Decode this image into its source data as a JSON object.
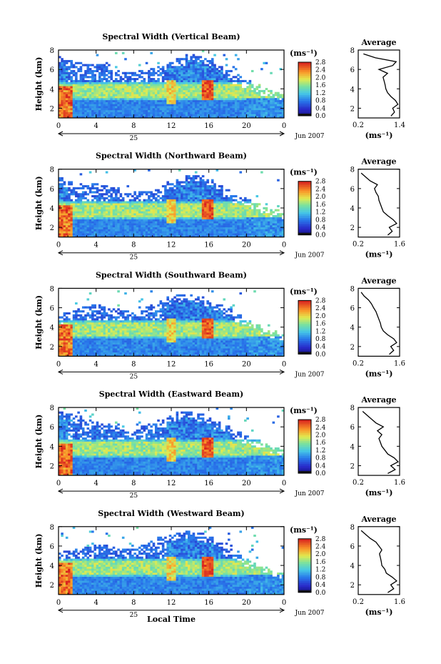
{
  "figure": {
    "xlabel_bottom": "Local Time",
    "date_label": "Jun 2007",
    "date_day": "25",
    "unit_label": "(ms⁻¹)",
    "avg_title": "Average",
    "avg_xlabel": "(ms⁻¹)"
  },
  "chart_data": [
    {
      "type": "heatmap",
      "title": "Spectral Width (Vertical Beam)",
      "ylabel": "Height (km)",
      "xlabel": "",
      "x_ticks": [
        "0",
        "4",
        "8",
        "12",
        "16",
        "20",
        "0"
      ],
      "xlim": [
        0,
        24
      ],
      "ylim": [
        1,
        8
      ],
      "y_ticks": [
        "2",
        "4",
        "6",
        "8"
      ],
      "colorbar": {
        "min": 0.0,
        "max": 2.8,
        "ticks": [
          "2.8",
          "2.4",
          "2.0",
          "1.6",
          "1.2",
          "0.8",
          "0.4",
          "0.0"
        ]
      },
      "cloud_top_km": [
        7.2,
        6.9,
        6.5,
        6.3,
        6.4,
        6.6,
        5.9,
        5.5,
        5.4,
        5.6,
        5.8,
        6.2,
        6.6,
        6.9,
        7.4,
        7.2,
        6.9,
        6.4,
        5.6,
        5.0,
        4.6,
        4.2,
        3.8,
        3.6,
        3.4
      ],
      "average_profile": {
        "xlim": [
          0.2,
          1.4
        ],
        "x_ticks": [
          "0.2",
          "1.4"
        ],
        "heights": [
          1.2,
          1.6,
          2.0,
          2.4,
          2.8,
          3.2,
          3.6,
          4.0,
          4.4,
          4.8,
          5.2,
          5.6,
          6.0,
          6.4,
          6.8,
          7.2,
          7.6
        ],
        "values": [
          1.15,
          1.25,
          1.2,
          1.35,
          1.28,
          1.15,
          1.05,
          1.0,
          0.98,
          0.95,
          0.92,
          1.05,
          0.8,
          1.2,
          1.3,
          0.7,
          0.35
        ]
      }
    },
    {
      "type": "heatmap",
      "title": "Spectral Width (Northward Beam)",
      "ylabel": "Height (km)",
      "xlabel": "",
      "x_ticks": [
        "0",
        "4",
        "8",
        "12",
        "16",
        "20",
        "0"
      ],
      "xlim": [
        0,
        24
      ],
      "ylim": [
        1,
        8
      ],
      "y_ticks": [
        "2",
        "4",
        "6",
        "8"
      ],
      "colorbar": {
        "min": 0.0,
        "max": 2.8,
        "ticks": [
          "2.8",
          "2.4",
          "2.0",
          "1.6",
          "1.2",
          "0.8",
          "0.4",
          "0.0"
        ]
      },
      "cloud_top_km": [
        7.0,
        6.6,
        6.3,
        6.2,
        6.3,
        6.1,
        5.8,
        5.3,
        5.2,
        5.4,
        5.7,
        6.0,
        6.5,
        6.8,
        7.2,
        7.1,
        6.8,
        6.2,
        5.6,
        5.1,
        4.7,
        4.3,
        3.9,
        3.6,
        3.3
      ],
      "average_profile": {
        "xlim": [
          0.2,
          1.6
        ],
        "x_ticks": [
          "0.2",
          "1.6"
        ],
        "heights": [
          1.2,
          1.6,
          2.0,
          2.4,
          2.8,
          3.2,
          3.6,
          4.0,
          4.4,
          4.8,
          5.2,
          5.6,
          6.0,
          6.4,
          6.8,
          7.2,
          7.6
        ],
        "values": [
          1.2,
          1.35,
          1.25,
          1.5,
          1.38,
          1.2,
          1.05,
          1.0,
          0.95,
          0.9,
          0.88,
          0.8,
          0.75,
          0.85,
          0.6,
          0.45,
          0.3
        ]
      }
    },
    {
      "type": "heatmap",
      "title": "Spectral Width (Southward Beam)",
      "ylabel": "Height (km)",
      "xlabel": "",
      "x_ticks": [
        "0",
        "4",
        "8",
        "12",
        "16",
        "20",
        "0"
      ],
      "xlim": [
        0,
        24
      ],
      "ylim": [
        1,
        8
      ],
      "y_ticks": [
        "2",
        "4",
        "6",
        "8"
      ],
      "colorbar": {
        "min": 0.0,
        "max": 2.8,
        "ticks": [
          "2.8",
          "2.4",
          "2.0",
          "1.6",
          "1.2",
          "0.8",
          "0.4",
          "0.0"
        ]
      },
      "cloud_top_km": [
        4.8,
        5.2,
        5.6,
        5.9,
        6.2,
        6.0,
        5.6,
        5.4,
        5.5,
        5.8,
        6.2,
        6.6,
        6.9,
        7.1,
        7.2,
        7.0,
        6.7,
        6.2,
        5.6,
        5.0,
        4.5,
        4.1,
        3.7,
        3.4,
        3.2
      ],
      "average_profile": {
        "xlim": [
          0.2,
          1.6
        ],
        "x_ticks": [
          "0.2",
          "1.6"
        ],
        "heights": [
          1.2,
          1.6,
          2.0,
          2.4,
          2.8,
          3.2,
          3.6,
          4.0,
          4.4,
          4.8,
          5.2,
          5.6,
          6.0,
          6.4,
          6.8,
          7.2,
          7.6
        ],
        "values": [
          1.25,
          1.4,
          1.3,
          1.5,
          1.4,
          1.2,
          1.05,
          0.98,
          0.95,
          0.9,
          0.85,
          0.8,
          0.72,
          0.65,
          0.55,
          0.4,
          0.3
        ]
      }
    },
    {
      "type": "heatmap",
      "title": "Spectral Width (Eastward Beam)",
      "ylabel": "Height (km)",
      "xlabel": "",
      "x_ticks": [
        "0",
        "4",
        "8",
        "12",
        "16",
        "20",
        "0"
      ],
      "xlim": [
        0,
        24
      ],
      "ylim": [
        1,
        8
      ],
      "y_ticks": [
        "2",
        "4",
        "6",
        "8"
      ],
      "colorbar": {
        "min": 0.0,
        "max": 2.8,
        "ticks": [
          "2.8",
          "2.4",
          "2.0",
          "1.6",
          "1.2",
          "0.8",
          "0.4",
          "0.0"
        ]
      },
      "cloud_top_km": [
        7.4,
        7.2,
        6.9,
        6.6,
        6.4,
        6.3,
        6.0,
        5.6,
        5.5,
        5.8,
        6.2,
        6.6,
        7.0,
        7.3,
        7.4,
        7.1,
        6.8,
        6.3,
        5.8,
        5.2,
        4.8,
        4.4,
        4.0,
        3.7,
        3.5
      ],
      "average_profile": {
        "xlim": [
          0.2,
          1.6
        ],
        "x_ticks": [
          "0.2",
          "1.6"
        ],
        "heights": [
          1.2,
          1.6,
          2.0,
          2.4,
          2.8,
          3.2,
          3.6,
          4.0,
          4.4,
          4.8,
          5.2,
          5.6,
          6.0,
          6.4,
          6.8,
          7.2,
          7.6
        ],
        "values": [
          1.2,
          1.45,
          1.3,
          1.55,
          1.42,
          1.2,
          1.1,
          1.0,
          0.95,
          0.9,
          1.0,
          0.85,
          1.05,
          0.8,
          0.65,
          0.5,
          0.35
        ]
      }
    },
    {
      "type": "heatmap",
      "title": "Spectral Width (Westward Beam)",
      "ylabel": "Height (km)",
      "xlabel": "Local Time",
      "x_ticks": [
        "0",
        "4",
        "8",
        "12",
        "16",
        "20",
        "0"
      ],
      "xlim": [
        0,
        24
      ],
      "ylim": [
        1,
        8
      ],
      "y_ticks": [
        "2",
        "4",
        "6",
        "8"
      ],
      "colorbar": {
        "min": 0.0,
        "max": 2.8,
        "ticks": [
          "2.8",
          "2.4",
          "2.0",
          "1.6",
          "1.2",
          "0.8",
          "0.4",
          "0.0"
        ]
      },
      "cloud_top_km": [
        5.0,
        5.2,
        5.4,
        5.6,
        5.8,
        5.9,
        5.6,
        5.4,
        5.5,
        5.9,
        6.3,
        6.7,
        7.0,
        7.2,
        7.3,
        7.1,
        6.8,
        6.2,
        5.5,
        4.9,
        4.4,
        4.0,
        3.6,
        3.3,
        3.1
      ],
      "average_profile": {
        "xlim": [
          0.2,
          1.6
        ],
        "x_ticks": [
          "0.2",
          "1.6"
        ],
        "heights": [
          1.2,
          1.6,
          2.0,
          2.4,
          2.8,
          3.2,
          3.6,
          4.0,
          4.4,
          4.8,
          5.2,
          5.6,
          6.0,
          6.4,
          6.8,
          7.2,
          7.6
        ],
        "values": [
          1.2,
          1.4,
          1.3,
          1.5,
          1.35,
          1.15,
          1.1,
          1.0,
          0.98,
          0.95,
          0.92,
          1.0,
          0.9,
          0.8,
          0.6,
          0.45,
          0.3
        ]
      }
    }
  ]
}
